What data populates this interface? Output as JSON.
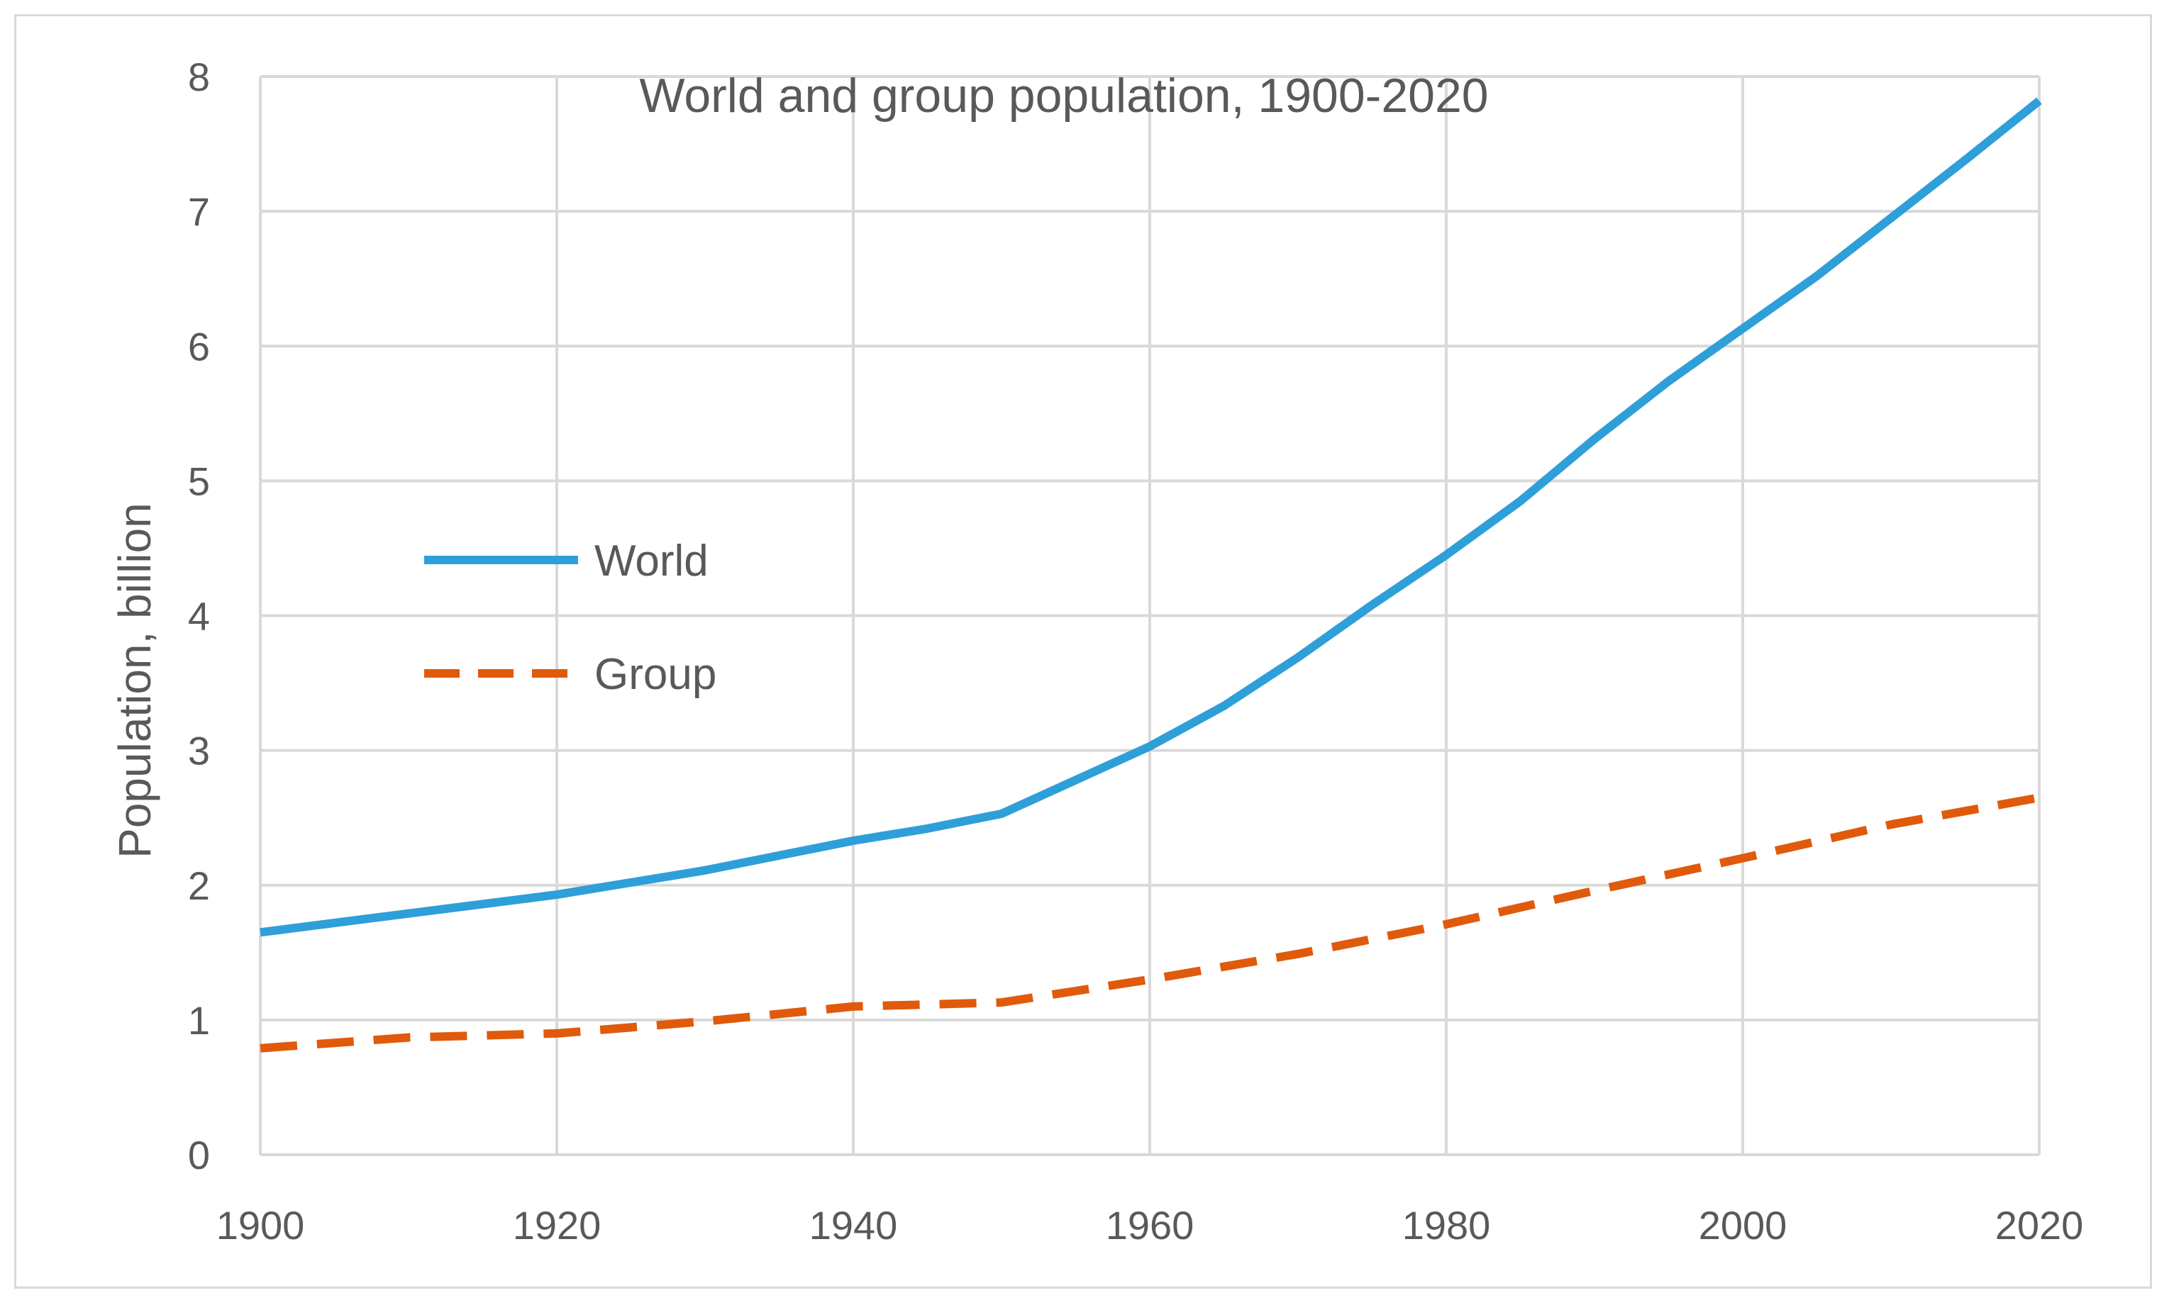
{
  "chart_data": {
    "type": "line",
    "title": "World and group population, 1900-2020",
    "xlabel": "",
    "ylabel": "Population, billion",
    "xlim": [
      1900,
      2020
    ],
    "ylim": [
      0,
      8
    ],
    "x_ticks": [
      1900,
      1920,
      1940,
      1960,
      1980,
      2000,
      2020
    ],
    "y_ticks": [
      0,
      1,
      2,
      3,
      4,
      5,
      6,
      7,
      8
    ],
    "grid": true,
    "legend_position": "center-left",
    "series": [
      {
        "name": "World",
        "color": "#2e9fd8",
        "style": "solid",
        "x": [
          1900,
          1910,
          1920,
          1930,
          1940,
          1945,
          1950,
          1955,
          1960,
          1965,
          1970,
          1975,
          1980,
          1985,
          1990,
          1995,
          2000,
          2005,
          2010,
          2015,
          2020
        ],
        "values": [
          1.65,
          1.79,
          1.93,
          2.11,
          2.33,
          2.42,
          2.53,
          2.78,
          3.03,
          3.33,
          3.69,
          4.08,
          4.45,
          4.85,
          5.31,
          5.74,
          6.13,
          6.52,
          6.95,
          7.38,
          7.82
        ]
      },
      {
        "name": "Group",
        "color": "#e05a0c",
        "style": "dashed",
        "x": [
          1900,
          1910,
          1920,
          1930,
          1940,
          1950,
          1960,
          1970,
          1980,
          1990,
          2000,
          2010,
          2020
        ],
        "values": [
          0.79,
          0.87,
          0.9,
          0.99,
          1.1,
          1.13,
          1.3,
          1.49,
          1.71,
          1.96,
          2.2,
          2.45,
          2.65
        ]
      }
    ]
  }
}
